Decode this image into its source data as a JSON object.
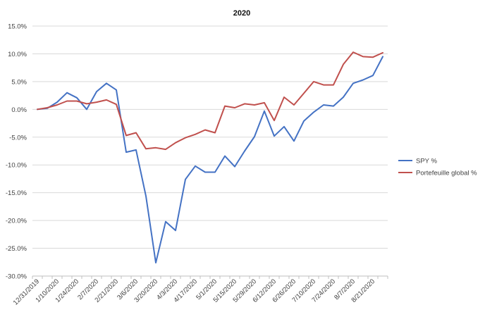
{
  "chart_data": {
    "type": "line",
    "title": "2020",
    "xlabel": "",
    "ylabel": "",
    "ylim": [
      -30,
      15
    ],
    "y_tick_labels": [
      "15.0%",
      "10.0%",
      "5.0%",
      "0.0%",
      "-5.0%",
      "-10.0%",
      "-15.0%",
      "-20.0%",
      "-25.0%",
      "-30.0%"
    ],
    "y_ticks": [
      15,
      10,
      5,
      0,
      -5,
      -10,
      -15,
      -20,
      -25,
      -30
    ],
    "grid": true,
    "legend_position": "right",
    "x": [
      "12/31/2019",
      "1/3/2020",
      "1/10/2020",
      "1/17/2020",
      "1/24/2020",
      "1/31/2020",
      "2/7/2020",
      "2/14/2020",
      "2/21/2020",
      "2/28/2020",
      "3/6/2020",
      "3/13/2020",
      "3/20/2020",
      "3/27/2020",
      "4/3/2020",
      "4/9/2020",
      "4/17/2020",
      "4/24/2020",
      "5/1/2020",
      "5/8/2020",
      "5/15/2020",
      "5/22/2020",
      "5/29/2020",
      "6/5/2020",
      "6/12/2020",
      "6/19/2020",
      "6/26/2020",
      "7/2/2020",
      "7/10/2020",
      "7/17/2020",
      "7/24/2020",
      "7/31/2020",
      "8/7/2020",
      "8/14/2020",
      "8/21/2020",
      "8/28/2020"
    ],
    "x_tick_labels": [
      "12/31/2019",
      "1/10/2020",
      "1/24/2020",
      "2/7/2020",
      "2/21/2020",
      "3/6/2020",
      "3/20/2020",
      "4/3/2020",
      "4/17/2020",
      "5/1/2020",
      "5/15/2020",
      "5/29/2020",
      "6/12/2020",
      "6/26/2020",
      "7/10/2020",
      "7/24/2020",
      "8/7/2020",
      "8/21/2020"
    ],
    "series": [
      {
        "name": "SPY %",
        "color": "#4472C4",
        "values": [
          0.0,
          0.2,
          1.3,
          3.0,
          2.1,
          0.0,
          3.2,
          4.7,
          3.5,
          -7.7,
          -7.3,
          -15.6,
          -27.6,
          -20.2,
          -21.8,
          -12.6,
          -10.2,
          -11.3,
          -11.3,
          -8.4,
          -10.3,
          -7.5,
          -4.9,
          -0.3,
          -4.8,
          -3.1,
          -5.7,
          -2.1,
          -0.5,
          0.8,
          0.6,
          2.2,
          4.7,
          5.3,
          6.1,
          9.5
        ]
      },
      {
        "name": "Portefeuille global %",
        "color": "#C0504D",
        "values": [
          0.0,
          0.3,
          0.8,
          1.5,
          1.5,
          1.0,
          1.3,
          1.7,
          0.9,
          -4.7,
          -4.2,
          -7.1,
          -6.9,
          -7.2,
          -6.0,
          -5.1,
          -4.5,
          -3.7,
          -4.2,
          0.6,
          0.3,
          1.0,
          0.8,
          1.2,
          -2.0,
          2.2,
          0.8,
          2.9,
          5.0,
          4.4,
          4.4,
          8.1,
          10.3,
          9.5,
          9.4,
          10.2
        ]
      }
    ]
  }
}
